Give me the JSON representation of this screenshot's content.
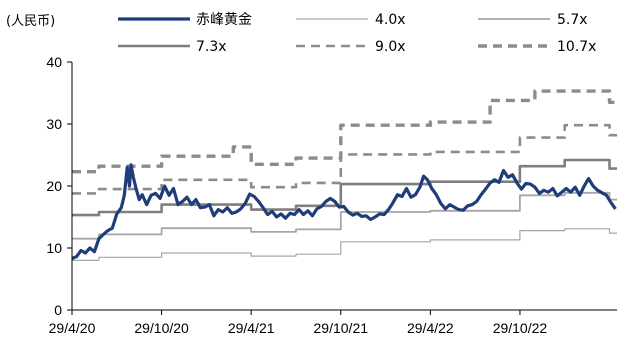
{
  "chart_data": {
    "type": "line",
    "unit_label": "(人民币)",
    "y_ticks": [
      "0",
      "10",
      "20",
      "30",
      "40"
    ],
    "ylim": [
      0,
      40
    ],
    "x_ticks": [
      "29/4/20",
      "29/10/20",
      "29/4/21",
      "29/10/21",
      "29/4/22",
      "29/10/22"
    ],
    "x_tick_positions": [
      0,
      6,
      12,
      18,
      24,
      30
    ],
    "xlim": [
      0,
      36.5
    ],
    "grid": false,
    "legend_position": "top",
    "series": [
      {
        "name": "赤峰黄金",
        "color": "#1f3d7a",
        "style": "solid-thick",
        "points": [
          [
            0.0,
            8.3
          ],
          [
            0.3,
            8.6
          ],
          [
            0.6,
            9.6
          ],
          [
            0.9,
            9.2
          ],
          [
            1.2,
            10.0
          ],
          [
            1.5,
            9.4
          ],
          [
            1.8,
            11.5
          ],
          [
            2.1,
            12.2
          ],
          [
            2.4,
            12.8
          ],
          [
            2.7,
            13.2
          ],
          [
            3.0,
            15.5
          ],
          [
            3.3,
            16.5
          ],
          [
            3.5,
            18.5
          ],
          [
            3.7,
            23.0
          ],
          [
            3.85,
            20.0
          ],
          [
            3.95,
            23.4
          ],
          [
            4.1,
            21.5
          ],
          [
            4.3,
            19.5
          ],
          [
            4.5,
            17.8
          ],
          [
            4.7,
            18.6
          ],
          [
            5.0,
            17.0
          ],
          [
            5.3,
            18.5
          ],
          [
            5.6,
            18.8
          ],
          [
            5.9,
            18.0
          ],
          [
            6.2,
            20.0
          ],
          [
            6.5,
            18.5
          ],
          [
            6.8,
            19.6
          ],
          [
            7.1,
            17.0
          ],
          [
            7.4,
            17.5
          ],
          [
            7.7,
            18.2
          ],
          [
            8.0,
            17.0
          ],
          [
            8.3,
            17.8
          ],
          [
            8.6,
            16.5
          ],
          [
            8.9,
            16.6
          ],
          [
            9.2,
            17.0
          ],
          [
            9.5,
            15.2
          ],
          [
            9.8,
            16.2
          ],
          [
            10.1,
            15.8
          ],
          [
            10.4,
            16.5
          ],
          [
            10.7,
            15.6
          ],
          [
            11.0,
            15.8
          ],
          [
            11.3,
            16.3
          ],
          [
            11.6,
            17.2
          ],
          [
            11.9,
            18.7
          ],
          [
            12.2,
            18.3
          ],
          [
            12.5,
            17.5
          ],
          [
            12.8,
            16.5
          ],
          [
            13.1,
            15.4
          ],
          [
            13.4,
            15.9
          ],
          [
            13.7,
            15.0
          ],
          [
            14.0,
            15.5
          ],
          [
            14.3,
            14.8
          ],
          [
            14.6,
            15.6
          ],
          [
            14.9,
            15.4
          ],
          [
            15.2,
            16.2
          ],
          [
            15.5,
            15.4
          ],
          [
            15.8,
            16.0
          ],
          [
            16.1,
            15.2
          ],
          [
            16.4,
            16.3
          ],
          [
            16.7,
            16.7
          ],
          [
            17.0,
            17.5
          ],
          [
            17.3,
            18.0
          ],
          [
            17.6,
            17.5
          ],
          [
            17.9,
            16.6
          ],
          [
            18.2,
            16.7
          ],
          [
            18.5,
            15.8
          ],
          [
            18.8,
            15.3
          ],
          [
            19.1,
            15.6
          ],
          [
            19.4,
            15.1
          ],
          [
            19.7,
            15.2
          ],
          [
            20.0,
            14.6
          ],
          [
            20.3,
            15.0
          ],
          [
            20.6,
            15.5
          ],
          [
            20.9,
            15.4
          ],
          [
            21.2,
            16.2
          ],
          [
            21.5,
            17.3
          ],
          [
            21.8,
            18.6
          ],
          [
            22.1,
            18.3
          ],
          [
            22.4,
            19.6
          ],
          [
            22.7,
            18.2
          ],
          [
            23.0,
            18.6
          ],
          [
            23.3,
            19.8
          ],
          [
            23.55,
            21.6
          ],
          [
            23.8,
            21.0
          ],
          [
            24.1,
            19.6
          ],
          [
            24.4,
            18.6
          ],
          [
            24.7,
            17.2
          ],
          [
            25.0,
            16.3
          ],
          [
            25.3,
            17.0
          ],
          [
            25.6,
            16.6
          ],
          [
            25.9,
            16.2
          ],
          [
            26.2,
            16.1
          ],
          [
            26.5,
            16.8
          ],
          [
            26.8,
            17.0
          ],
          [
            27.1,
            17.5
          ],
          [
            27.4,
            18.6
          ],
          [
            27.7,
            19.5
          ],
          [
            28.0,
            20.5
          ],
          [
            28.3,
            21.0
          ],
          [
            28.6,
            20.6
          ],
          [
            28.9,
            22.5
          ],
          [
            29.2,
            21.4
          ],
          [
            29.5,
            21.8
          ],
          [
            29.8,
            20.5
          ],
          [
            30.1,
            19.5
          ],
          [
            30.4,
            20.4
          ],
          [
            30.7,
            20.3
          ],
          [
            31.0,
            19.8
          ],
          [
            31.3,
            18.8
          ],
          [
            31.6,
            19.3
          ],
          [
            31.9,
            19.0
          ],
          [
            32.2,
            19.6
          ],
          [
            32.5,
            18.4
          ],
          [
            32.8,
            19.0
          ],
          [
            33.1,
            19.6
          ],
          [
            33.4,
            19.0
          ],
          [
            33.7,
            19.8
          ],
          [
            34.0,
            18.5
          ],
          [
            34.3,
            20.0
          ],
          [
            34.6,
            21.2
          ],
          [
            34.9,
            20.0
          ],
          [
            35.2,
            19.3
          ],
          [
            35.5,
            18.9
          ],
          [
            35.8,
            18.5
          ],
          [
            36.1,
            17.3
          ],
          [
            36.4,
            16.3
          ]
        ]
      },
      {
        "name": "4.0x",
        "color": "#a6a6a6",
        "style": "solid-thin",
        "steps": [
          [
            0,
            8.0
          ],
          [
            1.8,
            8.5
          ],
          [
            6.0,
            9.2
          ],
          [
            12.0,
            8.7
          ],
          [
            15.0,
            9.0
          ],
          [
            18.0,
            11.0
          ],
          [
            24.0,
            11.3
          ],
          [
            30.0,
            12.8
          ],
          [
            33.0,
            13.1
          ],
          [
            36.0,
            12.4
          ],
          [
            36.5,
            12.4
          ]
        ]
      },
      {
        "name": "5.7x",
        "color": "#a6a6a6",
        "style": "solid-medium",
        "steps": [
          [
            0,
            11.5
          ],
          [
            1.8,
            12.2
          ],
          [
            6.0,
            13.2
          ],
          [
            12.0,
            12.6
          ],
          [
            15.0,
            13.0
          ],
          [
            18.0,
            15.8
          ],
          [
            24.0,
            16.0
          ],
          [
            30.0,
            18.5
          ],
          [
            33.0,
            18.9
          ],
          [
            36.0,
            17.8
          ],
          [
            36.5,
            17.8
          ]
        ]
      },
      {
        "name": "7.3x",
        "color": "#7f7f7f",
        "style": "solid-thick",
        "steps": [
          [
            0,
            15.3
          ],
          [
            1.8,
            15.8
          ],
          [
            6.0,
            17.0
          ],
          [
            12.0,
            16.2
          ],
          [
            15.0,
            16.8
          ],
          [
            18.0,
            20.3
          ],
          [
            24.0,
            20.7
          ],
          [
            30.0,
            23.2
          ],
          [
            33.0,
            24.2
          ],
          [
            36.0,
            22.8
          ],
          [
            36.5,
            22.8
          ]
        ]
      },
      {
        "name": "9.0x",
        "color": "#8c8c8c",
        "style": "dashed",
        "steps": [
          [
            0,
            18.8
          ],
          [
            1.8,
            19.5
          ],
          [
            6.0,
            21.0
          ],
          [
            12.0,
            19.8
          ],
          [
            15.0,
            20.5
          ],
          [
            18.0,
            25.1
          ],
          [
            24.0,
            25.5
          ],
          [
            30.0,
            27.8
          ],
          [
            33.0,
            29.8
          ],
          [
            36.0,
            28.2
          ],
          [
            36.5,
            28.2
          ]
        ]
      },
      {
        "name": "10.7x",
        "color": "#8c8c8c",
        "style": "dashed-thick",
        "steps": [
          [
            0,
            22.3
          ],
          [
            1.8,
            23.2
          ],
          [
            6.0,
            24.8
          ],
          [
            10.8,
            26.3
          ],
          [
            12.0,
            23.5
          ],
          [
            15.0,
            24.5
          ],
          [
            18.0,
            29.8
          ],
          [
            24.0,
            30.3
          ],
          [
            28.0,
            33.8
          ],
          [
            30.0,
            33.8
          ],
          [
            31.0,
            35.3
          ],
          [
            36.0,
            33.5
          ],
          [
            36.5,
            33.5
          ]
        ]
      }
    ]
  }
}
